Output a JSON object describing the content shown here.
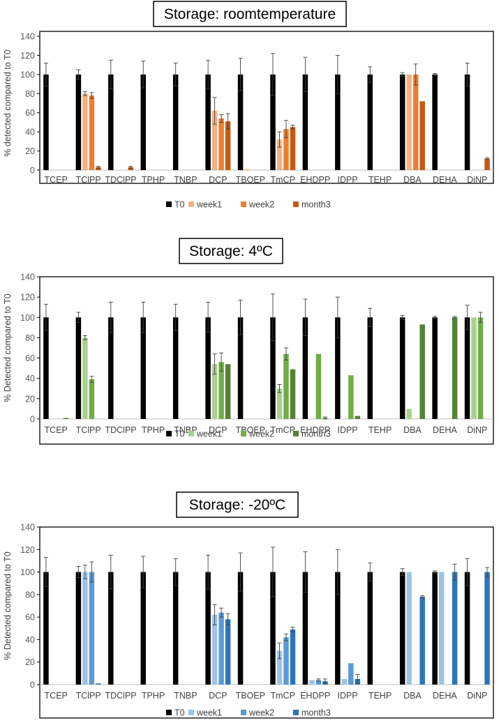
{
  "chart_data": [
    {
      "type": "bar",
      "title": "Storage: roomtemperature",
      "ylabel": "% detected compared to T0",
      "xlabel": "",
      "ylim": [
        0,
        140
      ],
      "yticks": [
        0,
        20,
        40,
        60,
        80,
        100,
        120,
        140
      ],
      "categories": [
        "TCEP",
        "TClPP",
        "TDClPP",
        "TPHP",
        "TNBP",
        "DCP",
        "TBOEP",
        "TmCP",
        "EHDPP",
        "IDPP",
        "TEHP",
        "DBA",
        "DEHA",
        "DiNP"
      ],
      "series": [
        {
          "name": "T0",
          "color": "#000000",
          "values": [
            100,
            100,
            100,
            100,
            100,
            100,
            100,
            100,
            100,
            100,
            100,
            100,
            100,
            100
          ],
          "errors": [
            12,
            5,
            15,
            14,
            12,
            15,
            17,
            22,
            18,
            20,
            8,
            2,
            1,
            12
          ]
        },
        {
          "name": "week1",
          "color": "#f4b183",
          "values": [
            0,
            80,
            0,
            0,
            0,
            62,
            1,
            32,
            0,
            0,
            0,
            100,
            0,
            0
          ],
          "errors": [
            0,
            2,
            0,
            0,
            0,
            14,
            0,
            8,
            0,
            0,
            0,
            0,
            0,
            0
          ]
        },
        {
          "name": "week2",
          "color": "#ed7d31",
          "values": [
            0,
            78,
            0,
            0,
            0,
            54,
            0,
            43,
            0,
            0,
            0,
            100,
            0,
            0
          ],
          "errors": [
            0,
            3,
            0,
            0,
            0,
            4,
            0,
            9,
            0,
            0,
            0,
            11,
            0,
            0
          ]
        },
        {
          "name": "month3",
          "color": "#c55a11",
          "values": [
            0,
            3,
            3,
            0,
            0,
            51,
            0,
            45,
            0,
            0,
            0,
            72,
            0,
            12
          ],
          "errors": [
            0,
            1,
            1,
            0,
            0,
            8,
            0,
            2,
            0,
            0,
            0,
            0,
            0,
            1
          ]
        }
      ]
    },
    {
      "type": "bar",
      "title": "Storage: 4ºC",
      "ylabel": "% Detected compared to T0",
      "xlabel": "",
      "ylim": [
        0,
        140
      ],
      "yticks": [
        0,
        20,
        40,
        60,
        80,
        100,
        120,
        140
      ],
      "categories": [
        "TCEP",
        "TClPP",
        "TDClPP",
        "TPHP",
        "TNBP",
        "DCP",
        "TBOEP",
        "TmCP",
        "EHDPP",
        "IDPP",
        "TEHP",
        "DBA",
        "DEHA",
        "DiNP"
      ],
      "series": [
        {
          "name": "T0",
          "color": "#000000",
          "values": [
            100,
            100,
            100,
            100,
            100,
            100,
            100,
            100,
            100,
            100,
            100,
            100,
            100,
            100
          ],
          "errors": [
            13,
            5,
            15,
            15,
            13,
            15,
            17,
            23,
            18,
            20,
            9,
            2,
            1,
            12
          ]
        },
        {
          "name": "week1",
          "color": "#a9d18e",
          "values": [
            0,
            80,
            0,
            0,
            0,
            54,
            0,
            30,
            0,
            0,
            0,
            10,
            0,
            100
          ],
          "errors": [
            0,
            2,
            0,
            0,
            0,
            10,
            0,
            4,
            0,
            0,
            0,
            0,
            0,
            0
          ]
        },
        {
          "name": "week2",
          "color": "#70ad47",
          "values": [
            0,
            39,
            0,
            0,
            0,
            56,
            0,
            64,
            64,
            43,
            0,
            0,
            0,
            100
          ],
          "errors": [
            0,
            3,
            0,
            0,
            0,
            9,
            0,
            6,
            0,
            0,
            0,
            0,
            0,
            5
          ]
        },
        {
          "name": "month3",
          "color": "#548235",
          "values": [
            1,
            0,
            0,
            0,
            0,
            54,
            0,
            49,
            1,
            3,
            0,
            93,
            100,
            0
          ],
          "errors": [
            0,
            0,
            0,
            0,
            0,
            0,
            0,
            0,
            1,
            0,
            0,
            0,
            1,
            0
          ]
        }
      ]
    },
    {
      "type": "bar",
      "title": "Storage: -20ºC",
      "ylabel": "% Detected compared to T0",
      "xlabel": "",
      "ylim": [
        0,
        140
      ],
      "yticks": [
        0,
        20,
        40,
        60,
        80,
        100,
        120,
        140
      ],
      "categories": [
        "TCEP",
        "TClPP",
        "TDClPP",
        "TPHP",
        "TNBP",
        "DCP",
        "TBOEP",
        "TmCP",
        "EHDPP",
        "IDPP",
        "TEHP",
        "DBA",
        "DEHA",
        "DiNP"
      ],
      "series": [
        {
          "name": "T0",
          "color": "#000000",
          "values": [
            100,
            100,
            100,
            100,
            100,
            100,
            100,
            100,
            100,
            100,
            100,
            100,
            100,
            100
          ],
          "errors": [
            13,
            5,
            15,
            14,
            12,
            15,
            17,
            22,
            18,
            20,
            8,
            3,
            1,
            12
          ]
        },
        {
          "name": "week1",
          "color": "#9dc3e6",
          "values": [
            0,
            100,
            0,
            0,
            0,
            62,
            0,
            30,
            4,
            5,
            0,
            100,
            100,
            0
          ],
          "errors": [
            0,
            6,
            0,
            0,
            0,
            9,
            0,
            7,
            0,
            0,
            0,
            0,
            0,
            0
          ]
        },
        {
          "name": "week2",
          "color": "#5b9bd5",
          "values": [
            0,
            100,
            0,
            0,
            0,
            64,
            0,
            42,
            4,
            19,
            0,
            0,
            0,
            0
          ],
          "errors": [
            0,
            9,
            0,
            0,
            0,
            4,
            0,
            3,
            1,
            0,
            0,
            0,
            0,
            0
          ]
        },
        {
          "name": "month3",
          "color": "#2e75b6",
          "values": [
            0,
            1,
            0,
            0,
            0,
            58,
            0,
            49,
            3,
            5,
            0,
            78,
            100,
            100
          ],
          "errors": [
            0,
            0,
            0,
            0,
            0,
            5,
            0,
            2,
            2,
            4,
            0,
            1,
            7,
            4
          ]
        }
      ]
    }
  ]
}
